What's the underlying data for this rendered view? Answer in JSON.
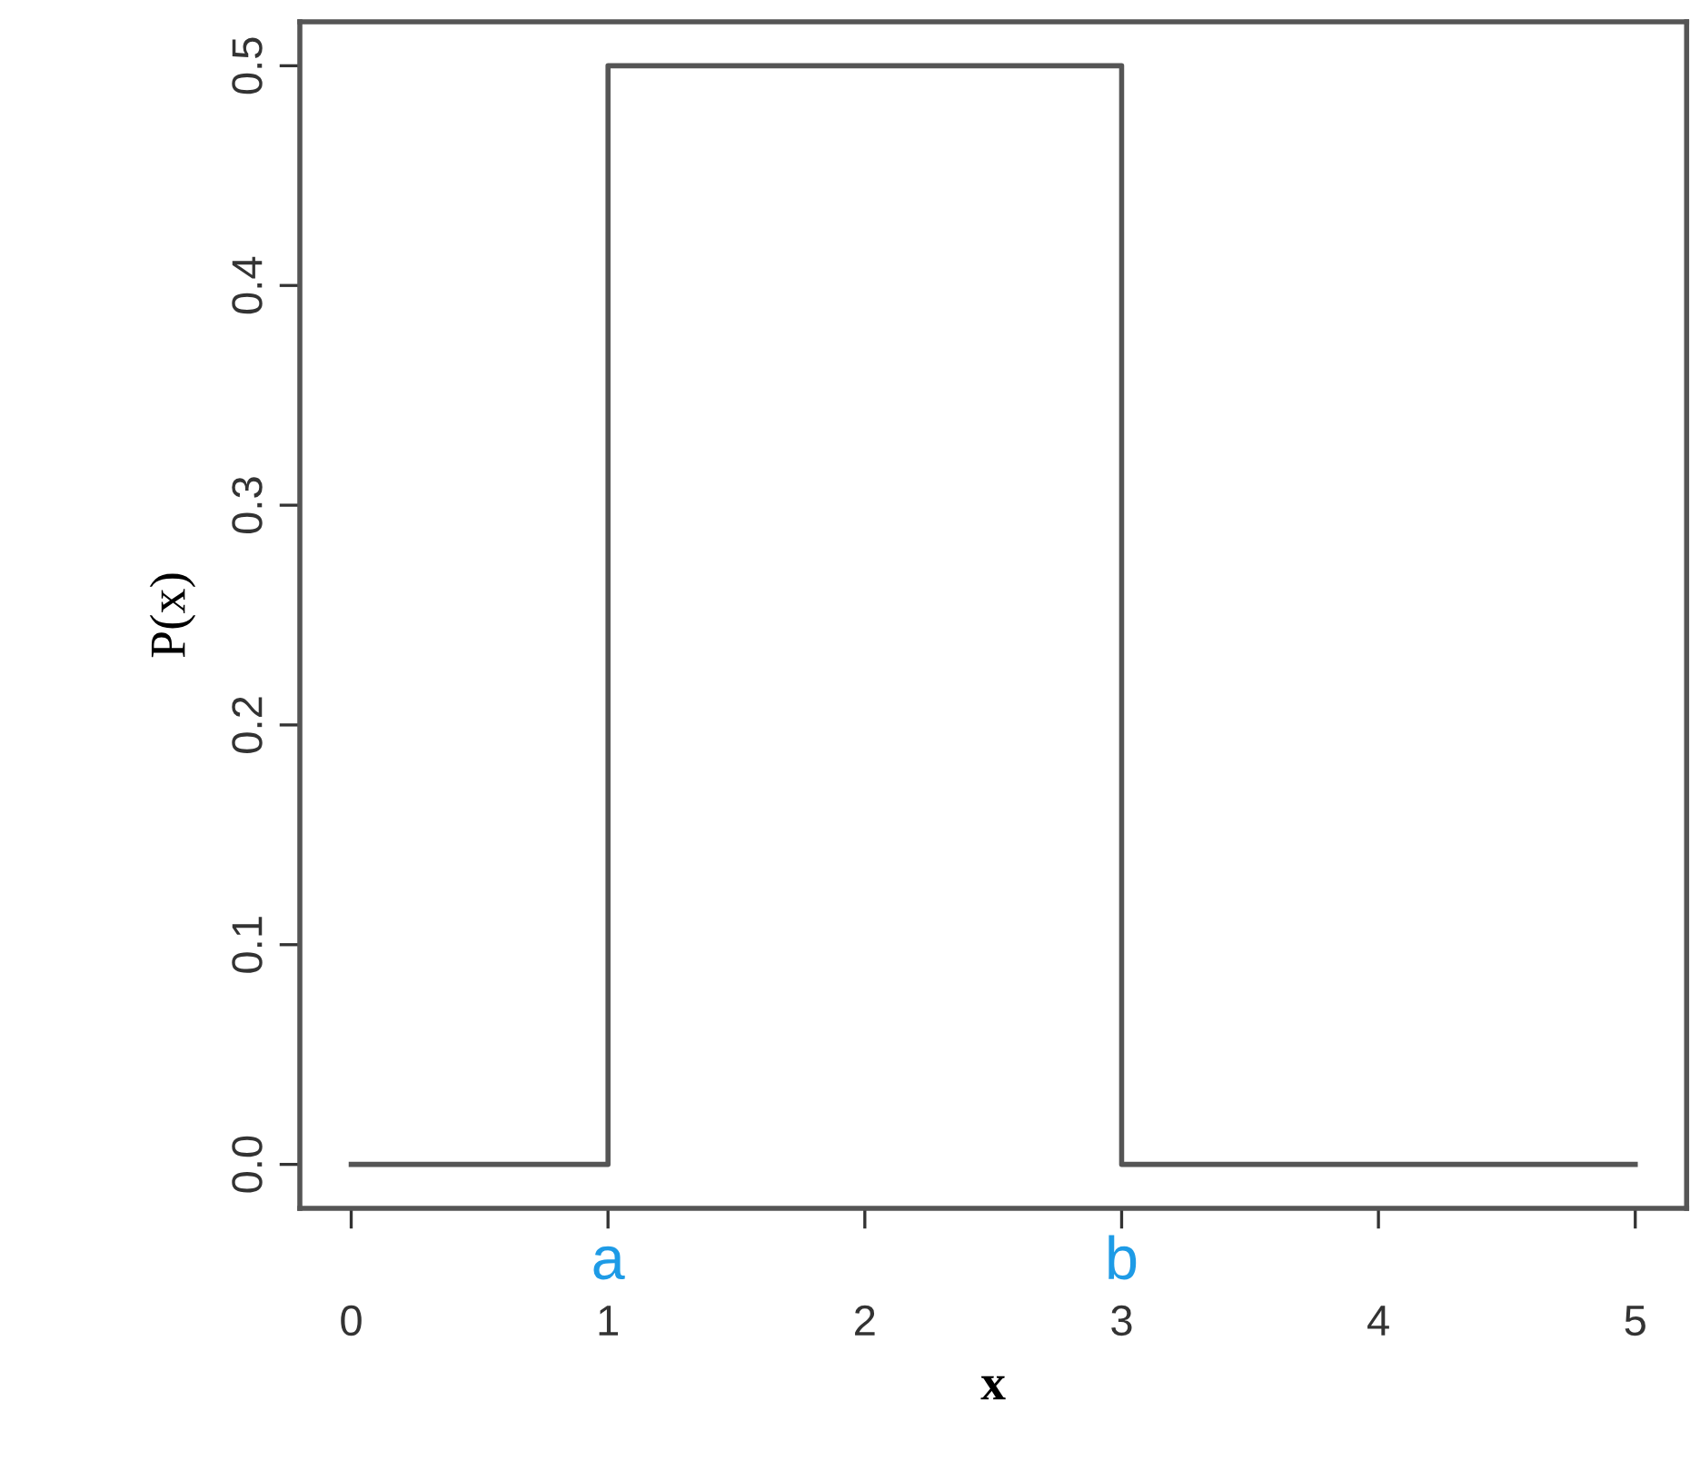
{
  "chart_data": {
    "type": "step",
    "xlabel": "x",
    "ylabel": "P(x)",
    "x": [
      0,
      1,
      3,
      5
    ],
    "values": [
      0,
      0.5,
      0,
      0
    ],
    "color": "#555555",
    "xlim": [
      -0.2,
      5.2
    ],
    "ylim": [
      -0.02,
      0.52
    ],
    "xticks": [
      0,
      1,
      2,
      3,
      4,
      5
    ],
    "yticks": [
      {
        "value": 0,
        "label": "0.0"
      },
      0.1,
      0.2,
      0.3,
      0.4,
      0.5
    ],
    "grid": false,
    "annotations": [
      {
        "text": "a",
        "x": 1,
        "y": 0
      },
      {
        "text": "b",
        "x": 3,
        "y": 0
      }
    ]
  }
}
